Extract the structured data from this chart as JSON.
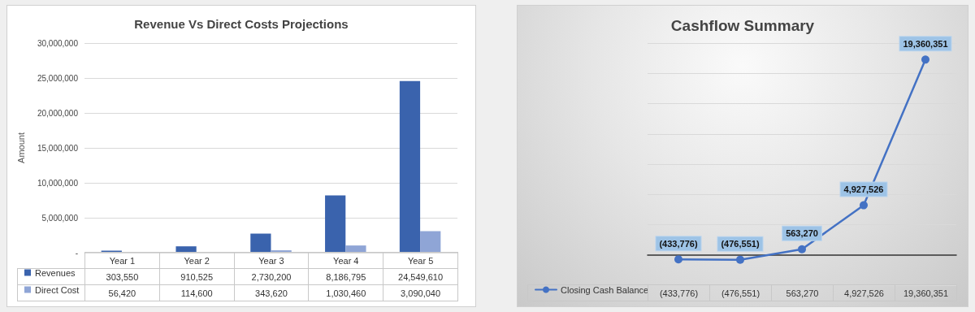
{
  "chart_data": [
    {
      "type": "bar",
      "title": "Revenue Vs Direct Costs Projections",
      "ylabel": "Amount",
      "categories": [
        "Year 1",
        "Year 2",
        "Year 3",
        "Year 4",
        "Year 5"
      ],
      "series": [
        {
          "name": "Revenues",
          "color": "#3a63ad",
          "values": [
            303550,
            910525,
            2730200,
            8186795,
            24549610
          ],
          "value_labels": [
            "303,550",
            "910,525",
            "2,730,200",
            "8,186,795",
            "24,549,610"
          ]
        },
        {
          "name": "Direct Cost",
          "color": "#8fa5d6",
          "values": [
            56420,
            114600,
            343620,
            1030460,
            3090040
          ],
          "value_labels": [
            "56,420",
            "114,600",
            "343,620",
            "1,030,460",
            "3,090,040"
          ]
        }
      ],
      "ylim": [
        0,
        30000000
      ],
      "yticks": [
        {
          "value": 0,
          "label": "-"
        },
        {
          "value": 5000000,
          "label": "5,000,000"
        },
        {
          "value": 10000000,
          "label": "10,000,000"
        },
        {
          "value": 15000000,
          "label": "15,000,000"
        },
        {
          "value": 20000000,
          "label": "20,000,000"
        },
        {
          "value": 25000000,
          "label": "25,000,000"
        },
        {
          "value": 30000000,
          "label": "30,000,000"
        }
      ],
      "grid": "y",
      "legend": "bottom left"
    },
    {
      "type": "line",
      "title": "Cashflow Summary",
      "categories": [
        null,
        null,
        null,
        null,
        null
      ],
      "series": [
        {
          "name": "Closing Cash Balance",
          "color": "#4472c4",
          "values": [
            -433776,
            -476551,
            563270,
            4927526,
            19360351
          ],
          "value_labels": [
            "(433,776)",
            "(476,551)",
            "563,270",
            "4,927,526",
            "19,360,351"
          ]
        }
      ],
      "grid": "y",
      "legend": "bottom left",
      "marker": "circle",
      "line_style": "solid"
    }
  ]
}
